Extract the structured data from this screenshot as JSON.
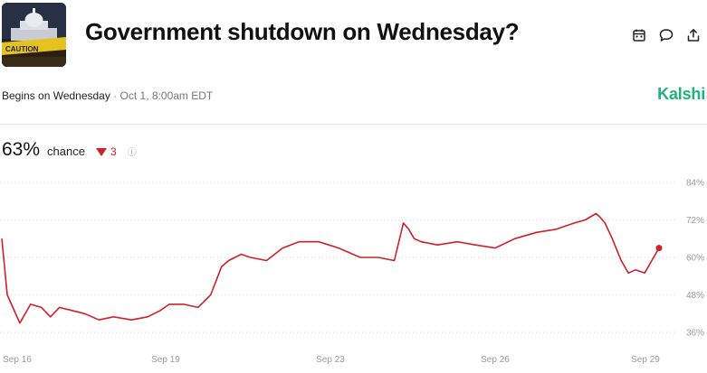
{
  "header": {
    "title": "Government shutdown on Wednesday?",
    "actions": [
      {
        "icon": "calendar-icon"
      },
      {
        "icon": "comment-icon"
      },
      {
        "icon": "share-icon"
      }
    ]
  },
  "thumbnail": {
    "caption": "CAUTION"
  },
  "meta": {
    "begins": "Begins on Wednesday",
    "separator": "·",
    "date": "Oct 1, 8:00am EDT",
    "brand": "Kalshi"
  },
  "stat": {
    "percent": "63%",
    "label": "chance",
    "delta": "3",
    "info_glyph": "ⓘ"
  },
  "colors": {
    "line": "#d0202a",
    "brand": "#1fb27e",
    "grid": "#d9d9d9"
  },
  "chart_data": {
    "type": "line",
    "x_ticks": [
      "Sep 16",
      "Sep 19",
      "Sep 23",
      "Sep 26",
      "Sep 29"
    ],
    "y_ticks": [
      "84%",
      "72%",
      "60%",
      "48%",
      "36%"
    ],
    "y_values": [
      84,
      72,
      60,
      48,
      36
    ],
    "ylim": [
      34,
      86
    ],
    "grid": "horizontal-dotted",
    "series": [
      {
        "x": [
          0.0,
          0.3,
          1.0,
          1.6,
          2.2,
          2.7,
          3.2,
          3.9,
          4.6,
          5.4,
          6.2,
          7.2,
          8.1,
          8.8,
          9.3,
          10.1,
          10.9,
          11.6,
          12.2,
          12.6,
          13.3,
          13.8,
          14.7,
          15.6,
          16.5,
          17.6,
          18.7,
          19.9,
          20.9,
          21.8,
          22.3,
          22.6,
          22.9,
          23.3,
          24.2,
          25.3,
          26.3,
          27.4,
          28.5,
          29.7,
          30.8,
          31.8,
          32.4,
          32.7,
          33.0,
          33.2,
          33.5,
          33.9,
          34.4,
          34.8,
          35.2,
          35.7,
          36.5
        ],
        "y": [
          66,
          48,
          39,
          45,
          44,
          41,
          44,
          43,
          42,
          40,
          41,
          40,
          41,
          43,
          45,
          45,
          44,
          48,
          57,
          59,
          61,
          60,
          59,
          63,
          65,
          65,
          63,
          60,
          60,
          59,
          71,
          69,
          66,
          65,
          64,
          65,
          64,
          63,
          66,
          68,
          69,
          71,
          72,
          73,
          74,
          73,
          71,
          66,
          59,
          55,
          56,
          55,
          63
        ]
      }
    ]
  }
}
